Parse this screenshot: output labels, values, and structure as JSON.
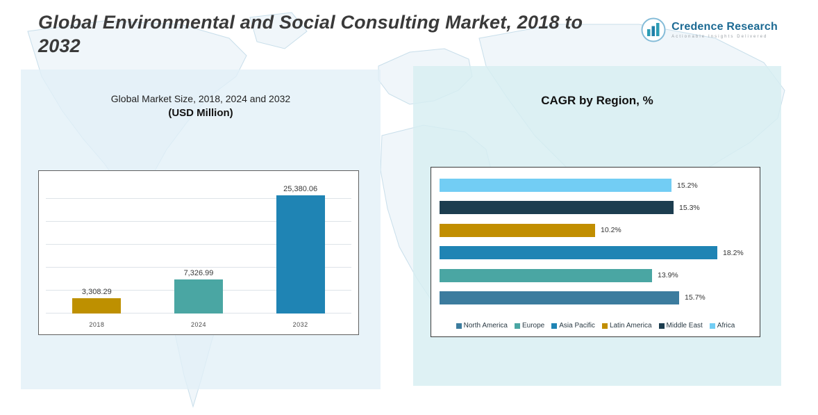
{
  "page": {
    "title": "Global Environmental and Social Consulting Market, 2018 to 2032"
  },
  "logo": {
    "name": "Credence Research",
    "tagline": "Actionable Insights Delivered"
  },
  "left_panel": {
    "subtitle_line1": "Global Market Size, 2018, 2024 and 2032",
    "subtitle_line2": "(USD Million)"
  },
  "right_panel": {
    "title": "CAGR by Region, %"
  },
  "colors": {
    "gold": "#BE9000",
    "teal": "#4AA6A3",
    "blue": "#1F84B4",
    "sky": "#72CDF4",
    "navy": "#1C3D4F",
    "steel_blue": "#3C7C9E",
    "left_panel_bg": "#E2EFF7",
    "right_panel_bg": "#D7EEF1"
  },
  "chart_data": [
    {
      "type": "bar",
      "orientation": "vertical",
      "title": "Global Market Size, 2018, 2024 and 2032 (USD Million)",
      "categories": [
        "2018",
        "2024",
        "2032"
      ],
      "values": [
        3308.29,
        7326.99,
        25380.06
      ],
      "value_labels": [
        "3,308.29",
        "7,326.99",
        "25,380.06"
      ],
      "bar_colors": [
        "#BE9000",
        "#4AA6A3",
        "#1F84B4"
      ],
      "ylabel": "USD Million",
      "ylim": [
        0,
        27000
      ],
      "grid": true,
      "legend_position": "none"
    },
    {
      "type": "bar",
      "orientation": "horizontal",
      "title": "CAGR by Region, %",
      "categories": [
        "Africa",
        "Middle East",
        "Latin America",
        "Asia Pacific",
        "Europe",
        "North America"
      ],
      "values": [
        15.2,
        15.3,
        10.2,
        18.2,
        13.9,
        15.7
      ],
      "value_labels": [
        "15.2%",
        "15.3%",
        "10.2%",
        "18.2%",
        "13.9%",
        "15.7%"
      ],
      "bar_colors": [
        "#72CDF4",
        "#1C3D4F",
        "#C18E00",
        "#1F84B4",
        "#4AA6A3",
        "#3C7C9E"
      ],
      "xlim": [
        0,
        20
      ],
      "grid": false,
      "legend_position": "bottom",
      "legend": [
        {
          "label": "North America",
          "color": "#3C7C9E"
        },
        {
          "label": "Europe",
          "color": "#4AA6A3"
        },
        {
          "label": "Asia Pacific",
          "color": "#1F84B4"
        },
        {
          "label": "Latin America",
          "color": "#C18E00"
        },
        {
          "label": "Middle East",
          "color": "#1C3D4F"
        },
        {
          "label": "Africa",
          "color": "#72CDF4"
        }
      ]
    }
  ]
}
